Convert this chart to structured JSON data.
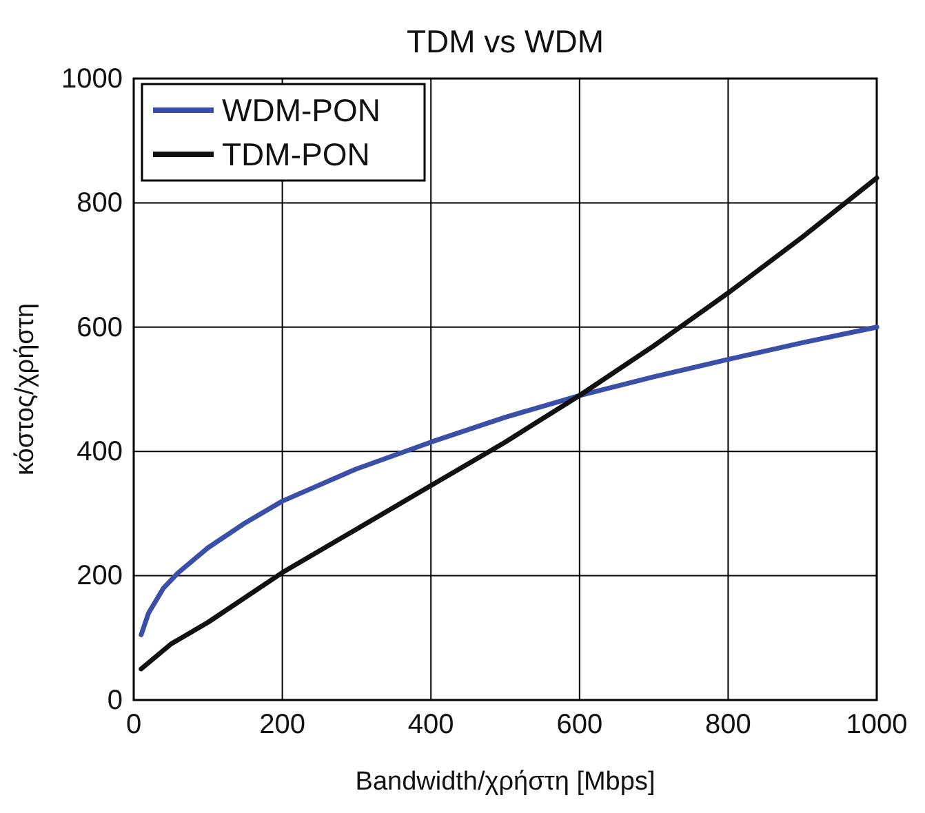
{
  "chart_data": {
    "type": "line",
    "title": "TDM vs  WDM",
    "xlabel": "Bandwidth/χρήστη [Mbps]",
    "ylabel": "κόστος/χρήστη",
    "xlim": [
      0,
      1000
    ],
    "xticks": [
      0,
      200,
      400,
      600,
      800,
      1000
    ],
    "ylim": [
      0,
      1000
    ],
    "yticks": [
      0,
      200,
      400,
      600,
      800,
      1000
    ],
    "grid": true,
    "legend": "top left",
    "marker": "none",
    "line_style": "solid",
    "series": [
      {
        "name": "WDM-PON",
        "color": "#3a4fa8",
        "x": [
          10,
          20,
          40,
          60,
          100,
          150,
          200,
          300,
          400,
          500,
          600,
          700,
          800,
          900,
          1000
        ],
        "values": [
          105,
          140,
          180,
          205,
          245,
          285,
          320,
          372,
          415,
          455,
          490,
          520,
          548,
          575,
          600
        ]
      },
      {
        "name": "TDM-PON",
        "color": "#111111",
        "x": [
          10,
          50,
          100,
          200,
          300,
          400,
          500,
          600,
          700,
          800,
          900,
          1000
        ],
        "values": [
          50,
          90,
          125,
          205,
          275,
          345,
          415,
          490,
          570,
          655,
          745,
          840
        ]
      }
    ]
  }
}
